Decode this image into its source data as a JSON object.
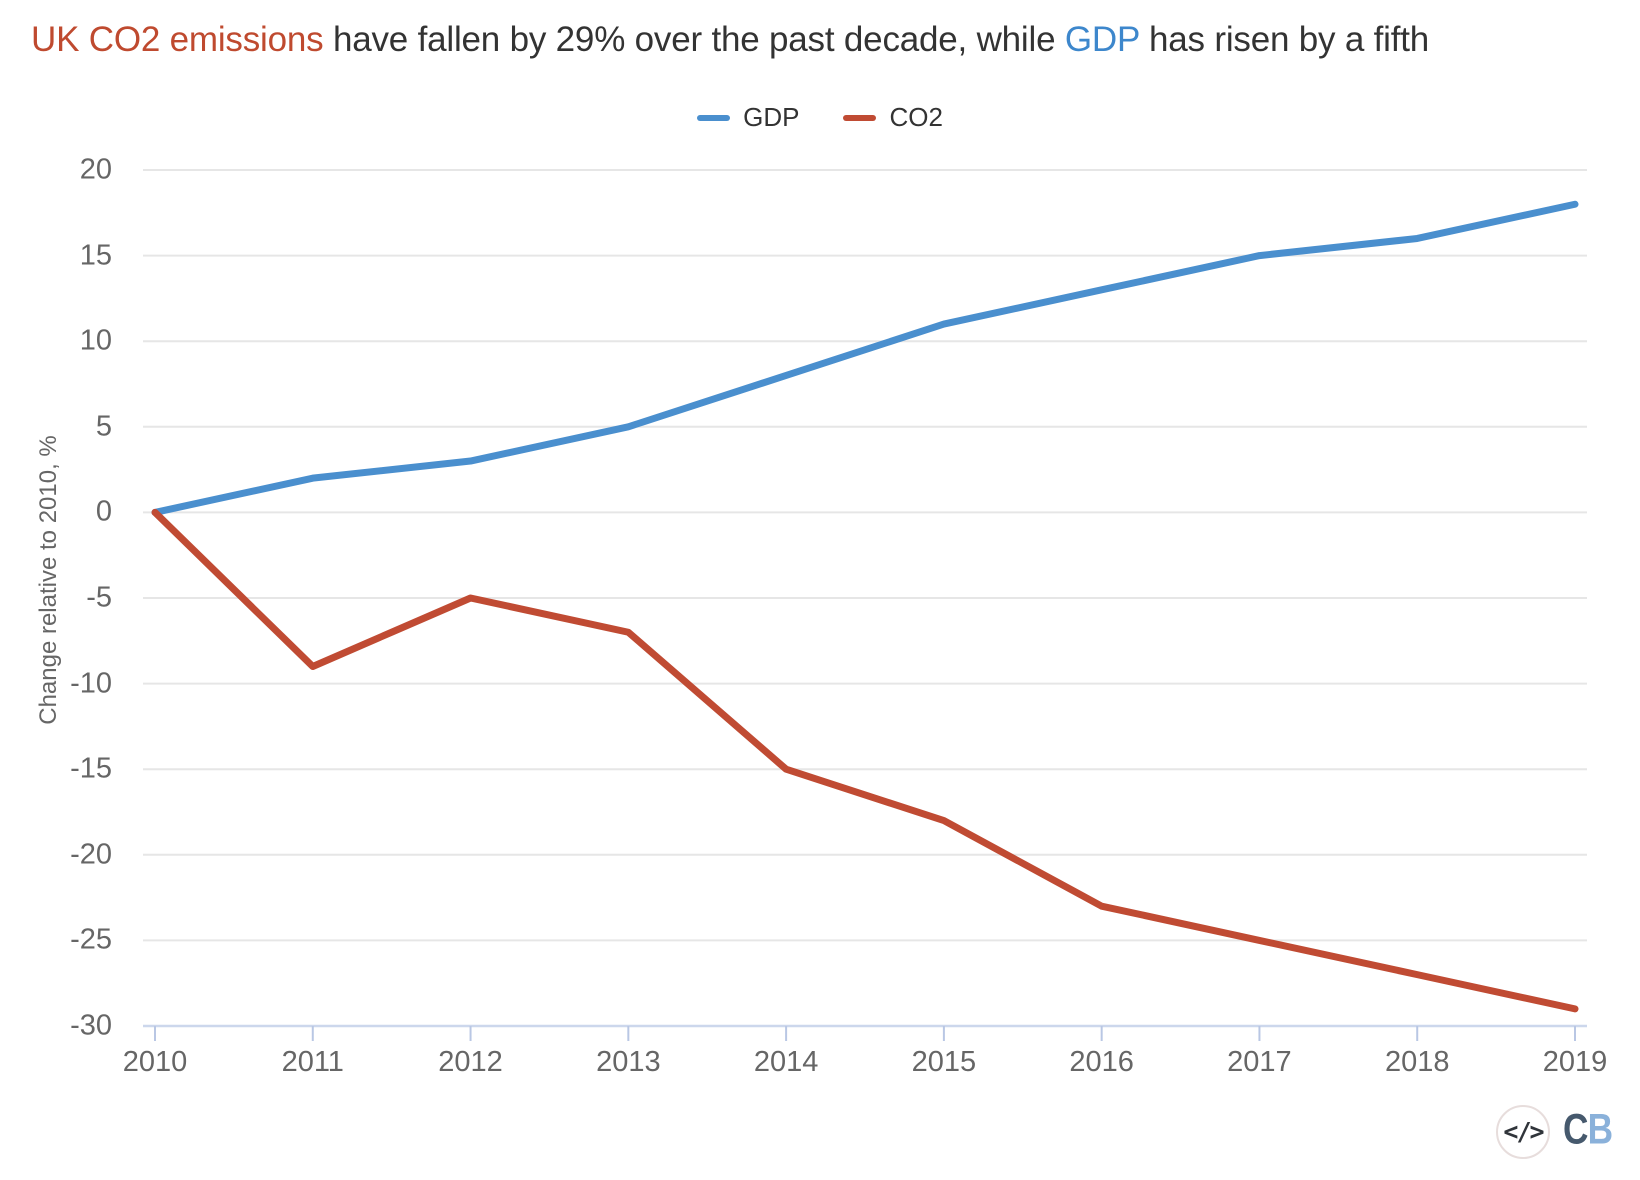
{
  "title": {
    "part1": "UK CO2 emissions",
    "part2": " have fallen by 29% over the past decade, while ",
    "part3": "GDP",
    "part4": " has risen by a fifth"
  },
  "colors": {
    "gdp_line": "#4a8fce",
    "co2_line": "#c04b33",
    "title_co2": "#bf4a2f",
    "title_gdp": "#3d87cc",
    "dark_text": "#333333",
    "tick_text": "#666666",
    "gridline": "#e6e6e6",
    "axis_line": "#ccd7ec",
    "tick_mark": "#b9c7e4"
  },
  "legend": {
    "items": [
      {
        "label": "GDP",
        "color": "#4a8fce"
      },
      {
        "label": "CO2",
        "color": "#c04b33"
      }
    ]
  },
  "y_axis": {
    "title": "Change relative to 2010, %",
    "ticks": [
      20,
      15,
      10,
      5,
      0,
      -5,
      -10,
      -15,
      -20,
      -25,
      -30
    ]
  },
  "x_axis": {
    "ticks": [
      "2010",
      "2011",
      "2012",
      "2013",
      "2014",
      "2015",
      "2016",
      "2017",
      "2018",
      "2019"
    ]
  },
  "chart_data": {
    "type": "line",
    "title": "UK CO2 emissions have fallen by 29% over the past decade, while GDP has risen by a fifth",
    "x": [
      2010,
      2011,
      2012,
      2013,
      2014,
      2015,
      2016,
      2017,
      2018,
      2019
    ],
    "series": [
      {
        "name": "GDP",
        "color": "#4a8fce",
        "values": [
          0,
          2,
          3,
          5,
          8,
          11,
          13,
          15,
          16,
          18
        ]
      },
      {
        "name": "CO2",
        "color": "#c04b33",
        "values": [
          0,
          -9,
          -5,
          -7,
          -15,
          -18,
          -23,
          -25,
          -27,
          -29
        ]
      }
    ],
    "xlabel": "",
    "ylabel": "Change relative to 2010, %",
    "ylim": [
      -30,
      20
    ],
    "ytick_step": 5,
    "grid": true,
    "legend_position": "top-center"
  },
  "footer": {
    "code_icon_label": "</>",
    "logo_c": "C",
    "logo_b": "B"
  }
}
